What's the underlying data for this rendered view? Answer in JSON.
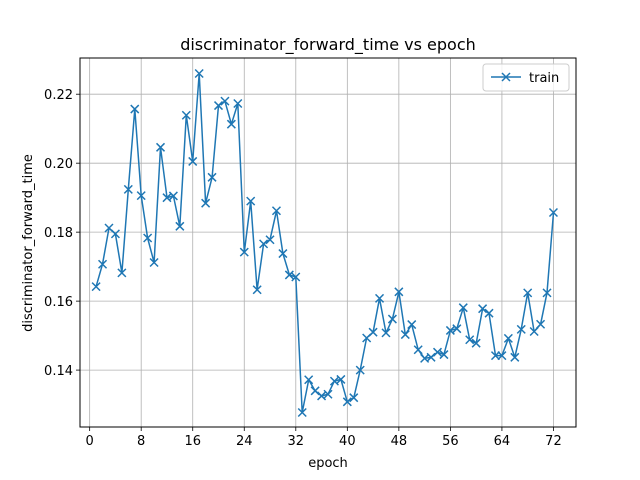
{
  "chart_data": {
    "type": "line",
    "title": "discriminator_forward_time vs epoch",
    "xlabel": "epoch",
    "ylabel": "discriminator_forward_time",
    "xlim": [
      -1.5,
      75.5
    ],
    "ylim": [
      0.1235,
      0.2305
    ],
    "xticks": [
      0,
      8,
      16,
      24,
      32,
      40,
      48,
      56,
      64,
      72
    ],
    "yticks": [
      0.14,
      0.16,
      0.18,
      0.2,
      0.22
    ],
    "ytick_labels": [
      "0.14",
      "0.16",
      "0.18",
      "0.20",
      "0.22"
    ],
    "grid": true,
    "legend_position": "top-right",
    "series": [
      {
        "name": "train",
        "color": "#1f77b4",
        "marker": "x",
        "x": [
          1,
          2,
          3,
          4,
          5,
          6,
          7,
          8,
          9,
          10,
          11,
          12,
          13,
          14,
          15,
          16,
          17,
          18,
          19,
          20,
          21,
          22,
          23,
          24,
          25,
          26,
          27,
          28,
          29,
          30,
          31,
          32,
          33,
          34,
          35,
          36,
          37,
          38,
          39,
          40,
          41,
          42,
          43,
          44,
          45,
          46,
          47,
          48,
          49,
          50,
          51,
          52,
          53,
          54,
          55,
          56,
          57,
          58,
          59,
          60,
          61,
          62,
          63,
          64,
          65,
          66,
          67,
          68,
          69,
          70,
          71,
          72
        ],
        "y": [
          0.1642,
          0.1707,
          0.1812,
          0.1795,
          0.1682,
          0.1924,
          0.2157,
          0.1906,
          0.1783,
          0.1712,
          0.2046,
          0.19,
          0.1905,
          0.1817,
          0.2139,
          0.2005,
          0.226,
          0.1884,
          0.1959,
          0.2167,
          0.218,
          0.2113,
          0.2173,
          0.1742,
          0.189,
          0.1633,
          0.1766,
          0.1778,
          0.1862,
          0.1738,
          0.1676,
          0.167,
          0.1277,
          0.1372,
          0.134,
          0.1325,
          0.133,
          0.1368,
          0.1373,
          0.1308,
          0.132,
          0.14,
          0.1493,
          0.151,
          0.1608,
          0.1508,
          0.1548,
          0.1627,
          0.1503,
          0.1532,
          0.1459,
          0.1434,
          0.1437,
          0.1452,
          0.1445,
          0.1515,
          0.152,
          0.1581,
          0.1488,
          0.1478,
          0.1578,
          0.1565,
          0.1442,
          0.1442,
          0.1492,
          0.1437,
          0.1518,
          0.1624,
          0.1512,
          0.1533,
          0.1624,
          0.1857
        ]
      }
    ]
  }
}
